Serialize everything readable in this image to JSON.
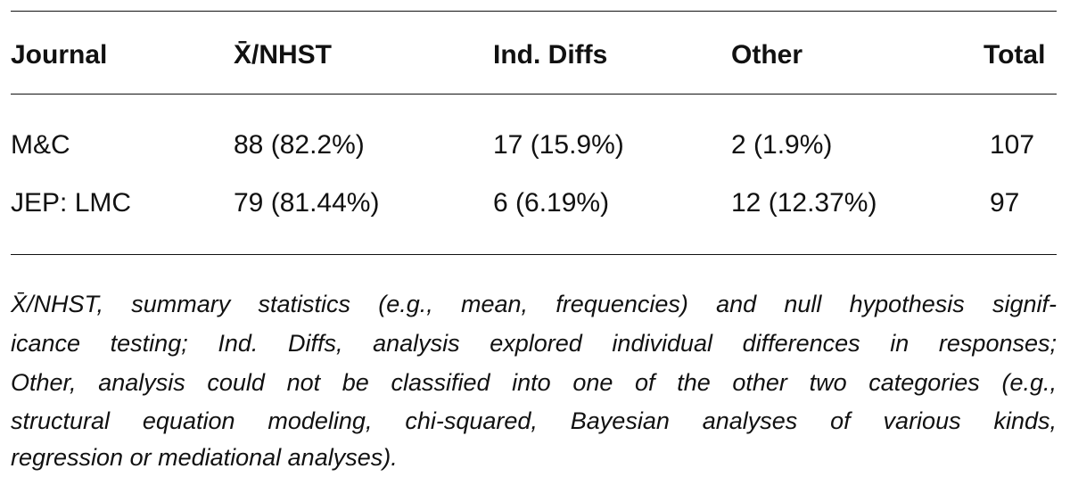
{
  "table": {
    "headers": [
      "Journal",
      "X̄/NHST",
      "Ind. Diffs",
      "Other",
      "Total"
    ],
    "rows": [
      [
        "M&C",
        "88 (82.2%)",
        "17 (15.9%)",
        "2 (1.9%)",
        "107"
      ],
      [
        "JEP: LMC",
        "79 (81.44%)",
        "6 (6.19%)",
        "12 (12.37%)",
        "97"
      ]
    ]
  },
  "footnote": [
    "X̄/NHST, summary statistics (e.g., mean, frequencies) and null hypothesis signif-",
    "icance testing; Ind. Diffs, analysis explored individual differences in responses;",
    "Other, analysis could not be classified into one of the other two categories (e.g.,",
    "structural equation modeling, chi-squared, Bayesian analyses of various kinds,",
    "regression or mediational analyses)."
  ]
}
